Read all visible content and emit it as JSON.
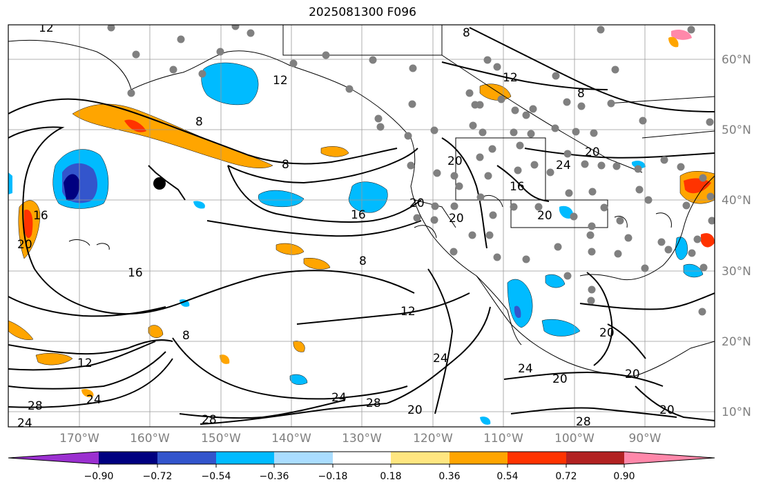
{
  "title": "2025081300 F096",
  "lat_labels": [
    "60°N",
    "50°N",
    "40°N",
    "30°N",
    "20°N",
    "10°N"
  ],
  "lon_labels": [
    "170°W",
    "160°W",
    "150°W",
    "140°W",
    "130°W",
    "120°W",
    "110°W",
    "100°W",
    "90°W"
  ],
  "colorbar": {
    "ticks": [
      "−0.90",
      "−0.72",
      "−0.54",
      "−0.36",
      "−0.18",
      "0.18",
      "0.36",
      "0.54",
      "0.72",
      "0.90"
    ],
    "colors": [
      "#9b30d0",
      "#000080",
      "#3355cc",
      "#00bbff",
      "#aaddff",
      "#ffffff",
      "#ffe680",
      "#ffa500",
      "#ff3300",
      "#b22222",
      "#ff88aa"
    ]
  },
  "contour_labels": [
    "12",
    "8",
    "12",
    "8",
    "8",
    "8",
    "16",
    "16",
    "12",
    "20",
    "20",
    "16",
    "20",
    "24",
    "12",
    "16",
    "8",
    "8",
    "12",
    "20",
    "24",
    "20",
    "24",
    "24",
    "28",
    "24",
    "20",
    "28",
    "28",
    "28",
    "20",
    "20",
    "24",
    "20",
    "20",
    "20"
  ]
}
